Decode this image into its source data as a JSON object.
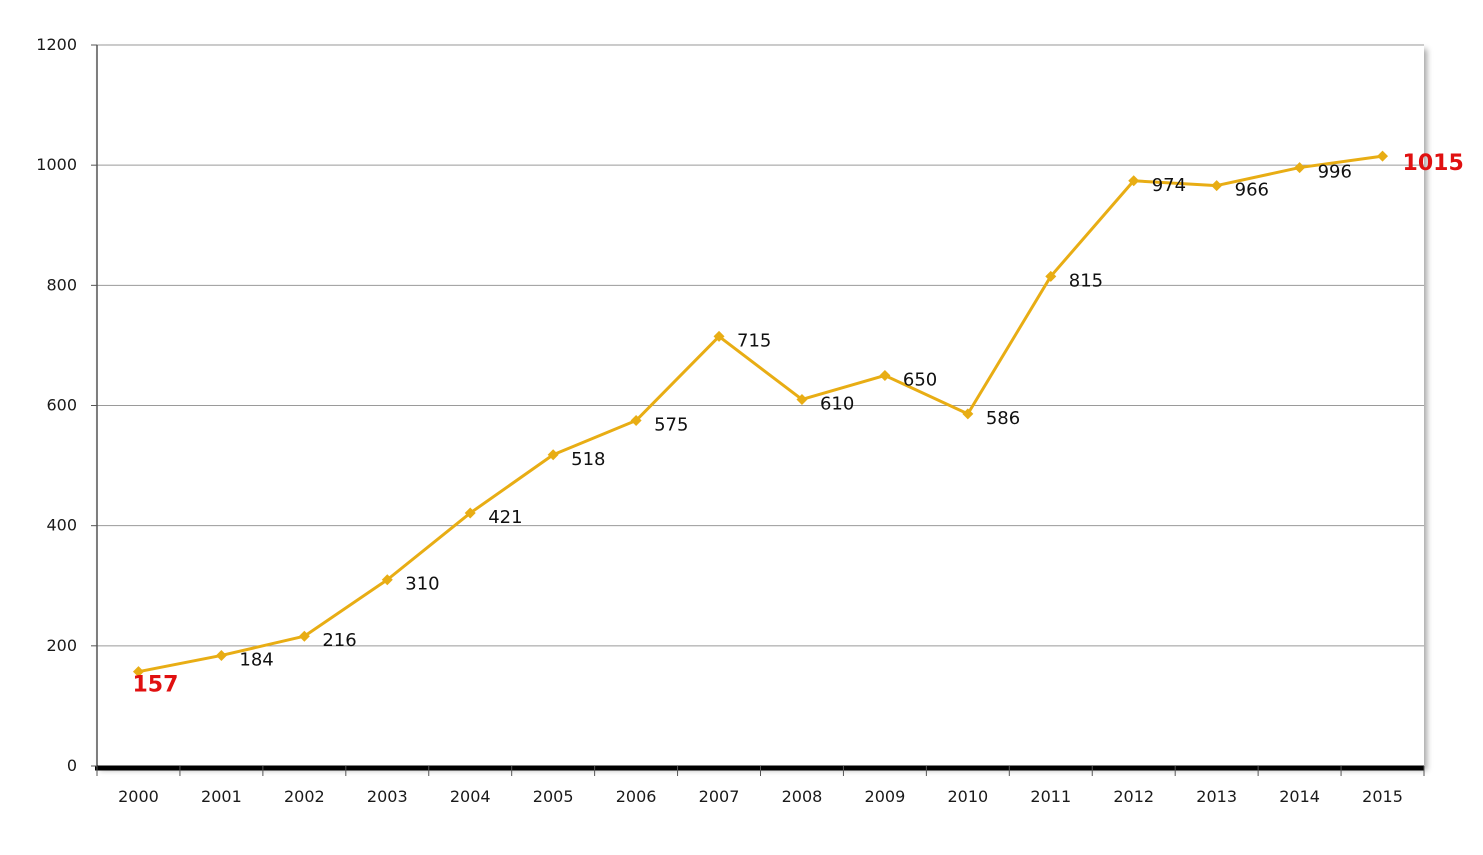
{
  "chart_data": {
    "type": "line",
    "title": "",
    "xlabel": "",
    "ylabel": "",
    "categories": [
      "2000",
      "2001",
      "2002",
      "2003",
      "2004",
      "2005",
      "2006",
      "2007",
      "2008",
      "2009",
      "2010",
      "2011",
      "2012",
      "2013",
      "2014",
      "2015"
    ],
    "series": [
      {
        "values": [
          157,
          184,
          216,
          310,
          421,
          518,
          575,
          715,
          610,
          650,
          586,
          815,
          974,
          966,
          996,
          1015
        ]
      }
    ],
    "data_labels": [
      "157",
      "184",
      "216",
      "310",
      "421",
      "518",
      "575",
      "715",
      "610",
      "650",
      "586",
      "815",
      "974",
      "966",
      "996",
      "1015"
    ],
    "highlighted_labels": [
      0,
      15
    ],
    "ylim": [
      0,
      1200
    ],
    "yticks": [
      "0",
      "200",
      "400",
      "600",
      "800",
      "1000",
      "1200"
    ],
    "grid": "horizontal",
    "legend": "none",
    "colors": {
      "line": "#E8AD14",
      "marker": "#E8AD14",
      "highlight": "#E01010",
      "grid": "#9a9a9a",
      "axis": "#000000"
    }
  }
}
